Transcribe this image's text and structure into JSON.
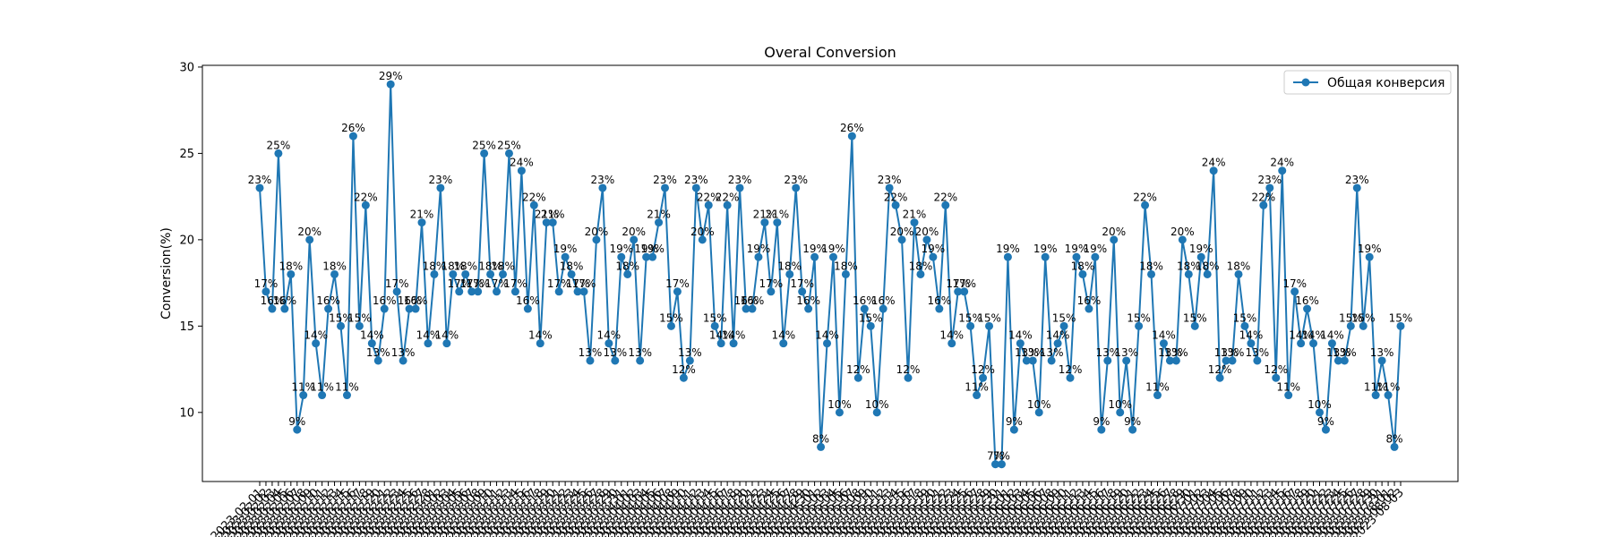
{
  "chart_data": {
    "type": "line",
    "title": "Overal Conversion",
    "xlabel": "",
    "ylabel": "Conversion(%)",
    "ylim": [
      6,
      30.1
    ],
    "yticks": [
      10,
      15,
      20,
      25,
      30
    ],
    "grid": false,
    "legend_position": "top-right",
    "date_start": "2023-02-01",
    "point_label_suffix": "%",
    "color": "#1f77b4",
    "series": [
      {
        "name": "Общая конверсия",
        "values": [
          23,
          17,
          16,
          25,
          16,
          18,
          9,
          11,
          20,
          14,
          11,
          16,
          18,
          15,
          11,
          26,
          15,
          22,
          14,
          13,
          16,
          29,
          17,
          13,
          16,
          16,
          21,
          14,
          18,
          23,
          14,
          18,
          17,
          18,
          17,
          17,
          25,
          18,
          17,
          18,
          25,
          17,
          24,
          16,
          22,
          14,
          21,
          21,
          17,
          19,
          18,
          17,
          17,
          13,
          20,
          23,
          14,
          13,
          19,
          18,
          20,
          13,
          19,
          19,
          21,
          23,
          15,
          17,
          12,
          13,
          23,
          20,
          22,
          15,
          14,
          22,
          14,
          23,
          16,
          16,
          19,
          21,
          17,
          21,
          14,
          18,
          23,
          17,
          16,
          19,
          8,
          14,
          19,
          10,
          18,
          26,
          12,
          16,
          15,
          10,
          16,
          23,
          22,
          20,
          12,
          21,
          18,
          20,
          19,
          16,
          22,
          14,
          17,
          17,
          15,
          11,
          12,
          15,
          7,
          7,
          19,
          9,
          14,
          13,
          13,
          10,
          19,
          13,
          14,
          15,
          12,
          19,
          18,
          16,
          19,
          9,
          13,
          20,
          10,
          13,
          9,
          15,
          22,
          18,
          11,
          14,
          13,
          13,
          20,
          18,
          15,
          19,
          18,
          24,
          12,
          13,
          13,
          18,
          15,
          14,
          13,
          22,
          23,
          12,
          24,
          11,
          17,
          14,
          16,
          14,
          10,
          9,
          14,
          13,
          13,
          15,
          23,
          15,
          19,
          11,
          13,
          11,
          8,
          15
        ]
      }
    ]
  }
}
